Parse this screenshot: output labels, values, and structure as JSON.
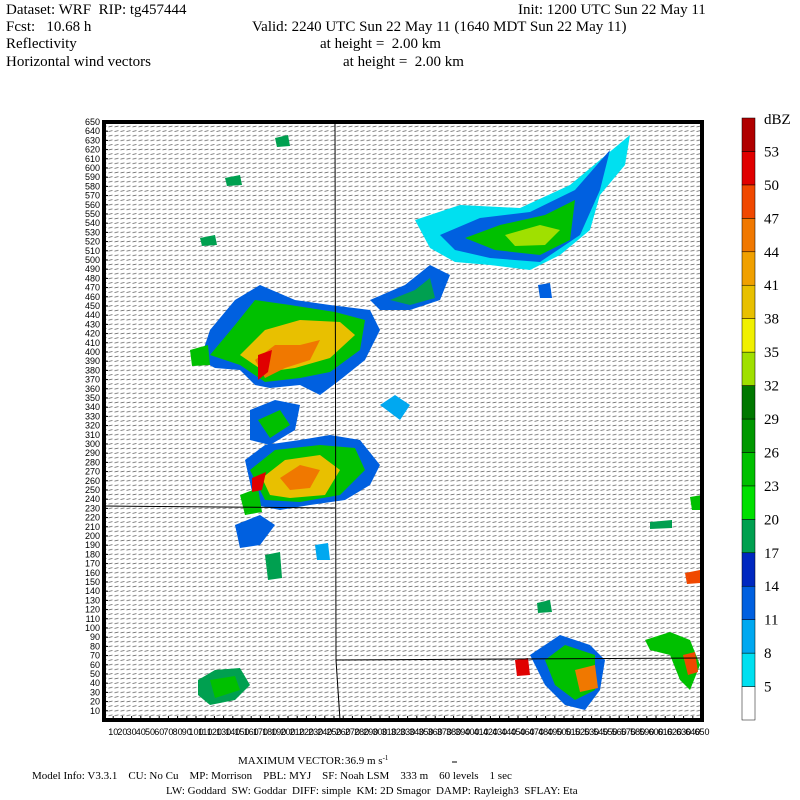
{
  "header": {
    "dataset": "Dataset: WRF  RIP: tg457444",
    "init": "Init: 1200 UTC Sun 22 May 11",
    "fcst": "Fcst:   10.68 h",
    "valid": "Valid: 2240 UTC Sun 22 May 11 (1640 MDT Sun 22 May 11)",
    "field1": "Reflectivity",
    "field1_height": "at height =  2.00 km",
    "field2": "Horizontal wind vectors",
    "field2_height": "at height =  2.00 km"
  },
  "chart_data": {
    "type": "map",
    "xlim": [
      0,
      650
    ],
    "ylim": [
      0,
      650
    ],
    "xticks": [
      10,
      20,
      30,
      40,
      50,
      60,
      70,
      80,
      90,
      100,
      110,
      120,
      130,
      140,
      150,
      160,
      170,
      180,
      190,
      200,
      210,
      220,
      230,
      240,
      250,
      260,
      270,
      280,
      290,
      300,
      310,
      320,
      330,
      340,
      350,
      360,
      370,
      380,
      390,
      400,
      410,
      420,
      430,
      440,
      450,
      460,
      470,
      480,
      490,
      500,
      510,
      520,
      530,
      540,
      550,
      560,
      570,
      580,
      590,
      600,
      610,
      620,
      630,
      640,
      650
    ],
    "yticks": [
      10,
      20,
      30,
      40,
      50,
      60,
      70,
      80,
      90,
      100,
      110,
      120,
      130,
      140,
      150,
      160,
      170,
      180,
      190,
      200,
      210,
      220,
      230,
      240,
      250,
      260,
      270,
      280,
      290,
      300,
      310,
      320,
      330,
      340,
      350,
      360,
      370,
      380,
      390,
      400,
      410,
      420,
      430,
      440,
      450,
      460,
      470,
      480,
      490,
      500,
      510,
      520,
      530,
      540,
      550,
      560,
      570,
      580,
      590,
      600,
      610,
      620,
      630,
      640,
      650
    ],
    "colorbar": {
      "unit": "dBZ",
      "levels": [
        5,
        8,
        11,
        14,
        17,
        20,
        23,
        26,
        29,
        32,
        35,
        38,
        41,
        44,
        47,
        50,
        53
      ],
      "colors": [
        "#ffffff",
        "#00e0f0",
        "#00a8f0",
        "#0060e0",
        "#0028c0",
        "#00a050",
        "#00e000",
        "#00c000",
        "#009800",
        "#007800",
        "#a0e000",
        "#f0f000",
        "#e8c000",
        "#f0a000",
        "#f07800",
        "#f04800",
        "#e00000",
        "#b00000"
      ]
    }
  },
  "footer": {
    "max_vector_label": "MAXIMUM VECTOR:",
    "max_vector_value": "36.9 m s",
    "max_vector_exp": "-1",
    "model_info": "Model Info: V3.3.1    CU: No Cu    MP: Morrison    PBL: MYJ    SF: Noah LSM    333 m    60 levels    1 sec",
    "physics": "LW: Goddard  SW: Goddar  DIFF: simple  KM: 2D Smagor  DAMP: Rayleigh3  SFLAY: Eta"
  }
}
